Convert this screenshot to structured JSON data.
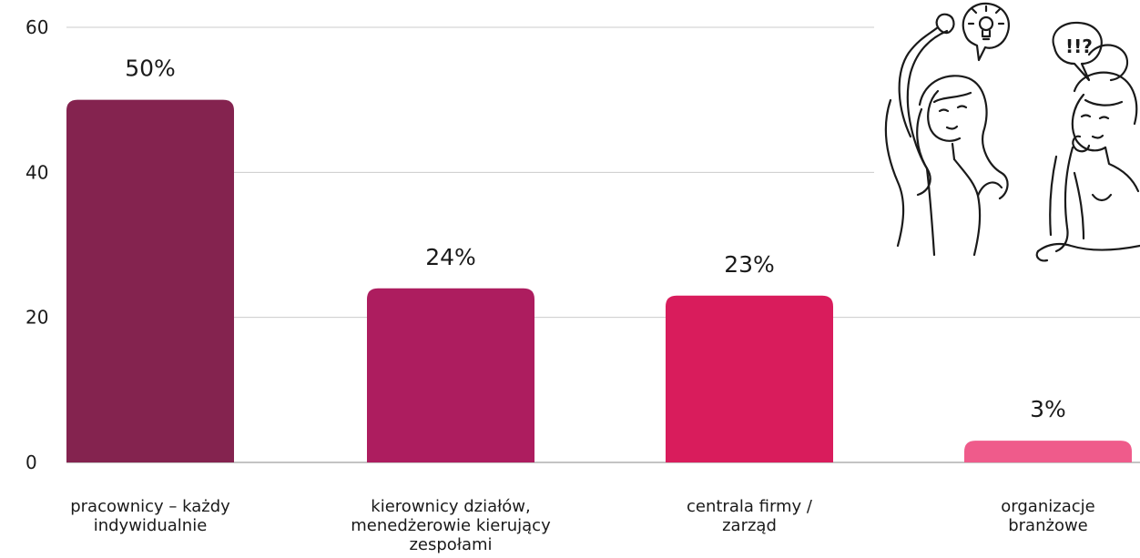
{
  "chart_data": {
    "type": "bar",
    "categories": [
      [
        "pracownicy – każdy",
        "indywidualnie"
      ],
      [
        "kierownicy działów,",
        "menedżerowie kierujący",
        "zespołami"
      ],
      [
        "centrala firmy /",
        "zarząd"
      ],
      [
        "organizacje",
        "branżowe"
      ]
    ],
    "values": [
      50,
      24,
      23,
      3
    ],
    "data_labels": [
      "50%",
      "24%",
      "23%",
      "3%"
    ],
    "y_ticks": [
      0,
      20,
      40,
      60
    ],
    "ylim": [
      0,
      60
    ],
    "grid": true,
    "bar_colors": [
      "#84234f",
      "#ad1d5f",
      "#d91c5c",
      "#ef5b8b"
    ],
    "illustration": "two-thinking-women-sketch",
    "idea_bubble_icon": "lightbulb-icon",
    "question_bubble_text": "!!?"
  }
}
